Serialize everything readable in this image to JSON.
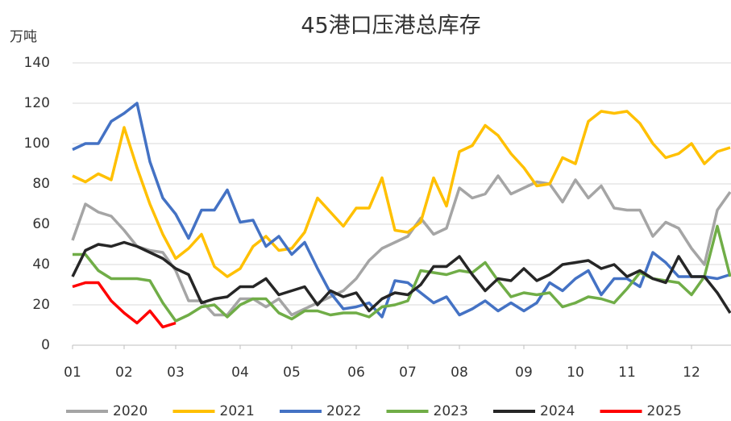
{
  "chart_data": {
    "type": "line",
    "title": "45港口压港总库存",
    "y_label": "万吨",
    "categories": [
      "01",
      null,
      null,
      null,
      "02",
      null,
      null,
      null,
      "03",
      null,
      null,
      null,
      null,
      "04",
      null,
      null,
      null,
      "05",
      null,
      null,
      null,
      null,
      "06",
      null,
      null,
      null,
      "07",
      null,
      null,
      null,
      "08",
      null,
      null,
      null,
      null,
      "09",
      null,
      null,
      null,
      "10",
      null,
      null,
      null,
      "11",
      null,
      null,
      null,
      null,
      "12",
      null,
      null,
      null
    ],
    "series": [
      {
        "name": "2020",
        "color": "#a5a5a5",
        "values": [
          52,
          70,
          66,
          64,
          57,
          49,
          47,
          46,
          37,
          22,
          22,
          15,
          15,
          23,
          23,
          19,
          23,
          15,
          18,
          21,
          24,
          27,
          33,
          42,
          48,
          51,
          54,
          63,
          55,
          58,
          78,
          73,
          75,
          84,
          75,
          78,
          81,
          80,
          71,
          82,
          73,
          79,
          68,
          67,
          67,
          54,
          61,
          58,
          48,
          40,
          67,
          76
        ]
      },
      {
        "name": "2021",
        "color": "#ffc000",
        "values": [
          84,
          81,
          85,
          82,
          108,
          88,
          70,
          55,
          43,
          48,
          55,
          39,
          34,
          38,
          49,
          54,
          47,
          48,
          56,
          73,
          66,
          59,
          68,
          68,
          83,
          57,
          56,
          61,
          83,
          69,
          96,
          99,
          109,
          104,
          95,
          88,
          79,
          80,
          93,
          90,
          111,
          116,
          115,
          116,
          110,
          100,
          93,
          95,
          100,
          90,
          96,
          98
        ]
      },
      {
        "name": "2022",
        "color": "#4472c4",
        "values": [
          97,
          100,
          100,
          111,
          115,
          120,
          91,
          73,
          65,
          53,
          67,
          67,
          77,
          61,
          62,
          49,
          54,
          45,
          51,
          38,
          26,
          18,
          19,
          21,
          14,
          32,
          31,
          26,
          21,
          24,
          15,
          18,
          22,
          17,
          21,
          17,
          21,
          31,
          27,
          33,
          37,
          25,
          33,
          33,
          29,
          46,
          41,
          34,
          34,
          34,
          33,
          35
        ]
      },
      {
        "name": "2023",
        "color": "#70ad47",
        "values": [
          45,
          45,
          37,
          33,
          33,
          33,
          32,
          21,
          12,
          15,
          19,
          20,
          14,
          20,
          23,
          23,
          16,
          13,
          17,
          17,
          15,
          16,
          16,
          14,
          19,
          20,
          22,
          37,
          36,
          35,
          37,
          36,
          41,
          32,
          24,
          26,
          25,
          26,
          19,
          21,
          24,
          23,
          21,
          28,
          36,
          33,
          32,
          31,
          25,
          34,
          59,
          34
        ]
      },
      {
        "name": "2024",
        "color": "#262626",
        "values": [
          34,
          47,
          50,
          49,
          51,
          49,
          46,
          43,
          38,
          35,
          21,
          23,
          24,
          29,
          29,
          33,
          25,
          27,
          29,
          20,
          27,
          24,
          26,
          17,
          23,
          26,
          25,
          30,
          39,
          39,
          44,
          35,
          27,
          33,
          32,
          38,
          32,
          35,
          40,
          41,
          42,
          38,
          40,
          34,
          37,
          33,
          31,
          44,
          34,
          34,
          26,
          16
        ]
      },
      {
        "name": "2025",
        "color": "#ff0000",
        "values": [
          29,
          31,
          31,
          22,
          16,
          11,
          17,
          9,
          11,
          null,
          null,
          null,
          null,
          null,
          null,
          null,
          null,
          null,
          null,
          null,
          null,
          null,
          null,
          null,
          null,
          null,
          null,
          null,
          null,
          null,
          null,
          null,
          null,
          null,
          null,
          null,
          null,
          null,
          null,
          null,
          null,
          null,
          null,
          null,
          null,
          null,
          null,
          null,
          null,
          null,
          null,
          null
        ]
      }
    ],
    "ylim": [
      0,
      140
    ],
    "yticks": [
      0,
      20,
      40,
      60,
      80,
      100,
      120,
      140
    ],
    "grid": true,
    "legend": "bottom"
  }
}
